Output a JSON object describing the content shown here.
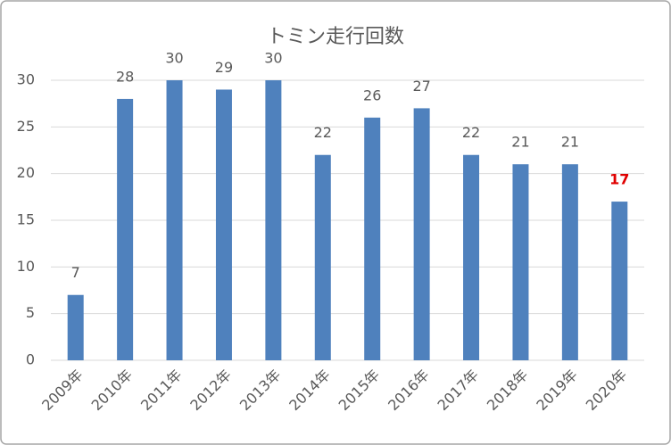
{
  "chart_data": {
    "type": "bar",
    "title": "トミン走行回数",
    "categories": [
      "2009年",
      "2010年",
      "2011年",
      "2012年",
      "2013年",
      "2014年",
      "2015年",
      "2016年",
      "2017年",
      "2018年",
      "2019年",
      "2020年"
    ],
    "values": [
      7,
      28,
      30,
      29,
      30,
      22,
      26,
      27,
      22,
      21,
      21,
      17
    ],
    "color": "#4f81bd",
    "label_colors": [
      "#595959",
      "#595959",
      "#595959",
      "#595959",
      "#595959",
      "#595959",
      "#595959",
      "#595959",
      "#595959",
      "#595959",
      "#595959",
      "#e00000"
    ],
    "ylim": [
      0,
      30
    ],
    "yticks": [
      0,
      5,
      10,
      15,
      20,
      25,
      30
    ],
    "grid": true
  }
}
